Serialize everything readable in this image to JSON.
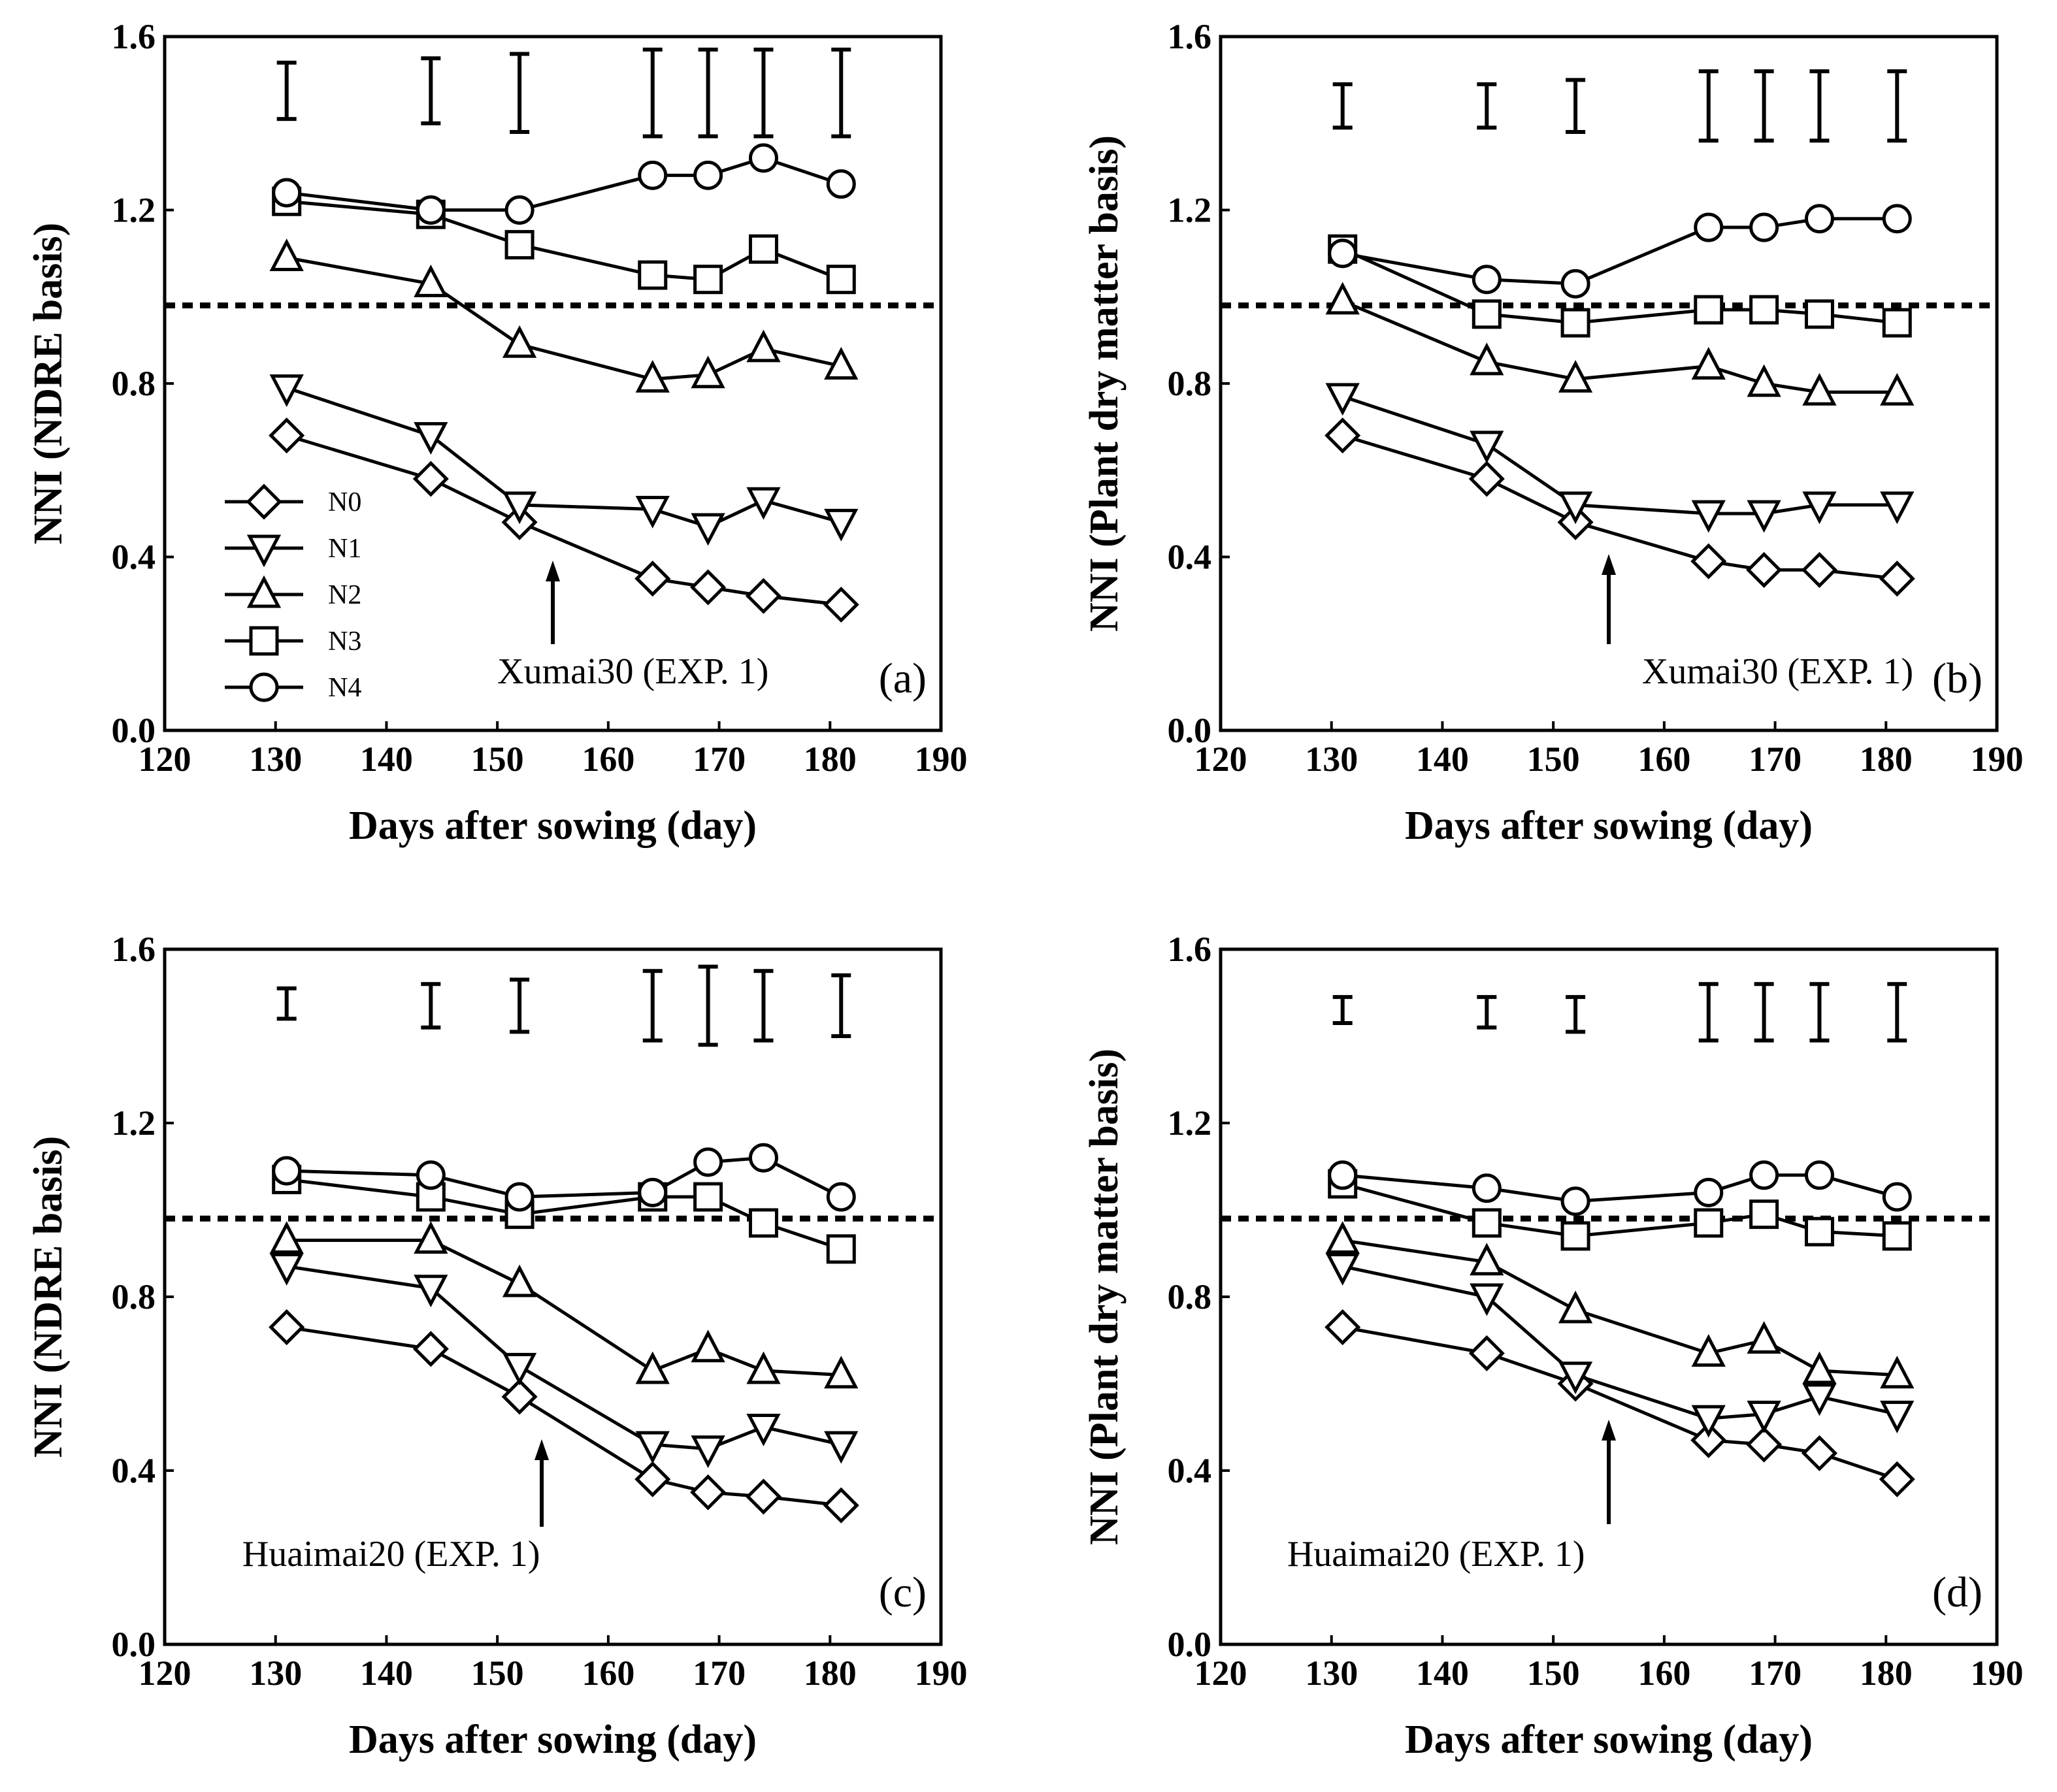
{
  "chart_data": [
    {
      "type": "line",
      "panel_label": "(a)",
      "annotation": "Xumai30 (EXP. 1)",
      "arrow_x": 155,
      "xlabel": "Days after sowing (day)",
      "ylabel": "NNI (NDRE basis)",
      "xlim": [
        120,
        190
      ],
      "ylim": [
        0.0,
        1.6
      ],
      "xticks": [
        "120",
        "130",
        "140",
        "150",
        "160",
        "170",
        "180",
        "190"
      ],
      "yticks": [
        "0.0",
        "0.4",
        "0.8",
        "1.2",
        "1.6"
      ],
      "reference_line": 0.98,
      "x": [
        131,
        144,
        152,
        164,
        169,
        174,
        181
      ],
      "series": [
        {
          "name": "N0",
          "marker": "diamond",
          "values": [
            0.68,
            0.58,
            0.48,
            0.35,
            0.33,
            0.31,
            0.29
          ]
        },
        {
          "name": "N1",
          "marker": "triangle-down",
          "values": [
            0.79,
            0.68,
            0.52,
            0.51,
            0.47,
            0.53,
            0.48
          ]
        },
        {
          "name": "N2",
          "marker": "triangle-up",
          "values": [
            1.09,
            1.03,
            0.89,
            0.81,
            0.82,
            0.88,
            0.84
          ]
        },
        {
          "name": "N3",
          "marker": "square",
          "values": [
            1.22,
            1.19,
            1.12,
            1.05,
            1.04,
            1.11,
            1.04
          ]
        },
        {
          "name": "N4",
          "marker": "circle",
          "values": [
            1.24,
            1.2,
            1.2,
            1.28,
            1.28,
            1.32,
            1.26
          ]
        }
      ],
      "error_bars": [
        [
          1.41,
          1.54
        ],
        [
          1.4,
          1.55
        ],
        [
          1.38,
          1.56
        ],
        [
          1.37,
          1.57
        ],
        [
          1.37,
          1.57
        ],
        [
          1.37,
          1.57
        ],
        [
          1.37,
          1.57
        ]
      ],
      "legend": {
        "position": "lower-left",
        "entries": [
          "N0",
          "N1",
          "N2",
          "N3",
          "N4"
        ]
      }
    },
    {
      "type": "line",
      "panel_label": "(b)",
      "annotation": "Xumai30 (EXP. 1)",
      "arrow_x": 155,
      "xlabel": "Days after sowing (day)",
      "ylabel": "NNI (Plant dry matter basis)",
      "xlim": [
        120,
        190
      ],
      "ylim": [
        0.0,
        1.6
      ],
      "xticks": [
        "120",
        "130",
        "140",
        "150",
        "160",
        "170",
        "180",
        "190"
      ],
      "yticks": [
        "0.0",
        "0.4",
        "0.8",
        "1.2",
        "1.6"
      ],
      "reference_line": 0.98,
      "x": [
        131,
        144,
        152,
        164,
        169,
        174,
        181
      ],
      "series": [
        {
          "name": "N0",
          "marker": "diamond",
          "values": [
            0.68,
            0.58,
            0.48,
            0.39,
            0.37,
            0.37,
            0.35
          ]
        },
        {
          "name": "N1",
          "marker": "triangle-down",
          "values": [
            0.77,
            0.66,
            0.52,
            0.5,
            0.5,
            0.52,
            0.52
          ]
        },
        {
          "name": "N2",
          "marker": "triangle-up",
          "values": [
            0.99,
            0.85,
            0.81,
            0.84,
            0.8,
            0.78,
            0.78
          ]
        },
        {
          "name": "N3",
          "marker": "square",
          "values": [
            1.11,
            0.96,
            0.94,
            0.97,
            0.97,
            0.96,
            0.94
          ]
        },
        {
          "name": "N4",
          "marker": "circle",
          "values": [
            1.1,
            1.04,
            1.03,
            1.16,
            1.16,
            1.18,
            1.18
          ]
        }
      ],
      "error_bars": [
        [
          1.39,
          1.49
        ],
        [
          1.39,
          1.49
        ],
        [
          1.38,
          1.5
        ],
        [
          1.36,
          1.52
        ],
        [
          1.36,
          1.52
        ],
        [
          1.36,
          1.52
        ],
        [
          1.36,
          1.52
        ]
      ]
    },
    {
      "type": "line",
      "panel_label": "(c)",
      "annotation": "Huaimai20 (EXP. 1)",
      "arrow_x": 154,
      "xlabel": "Days after sowing (day)",
      "ylabel": "NNI (NDRE basis)",
      "xlim": [
        120,
        190
      ],
      "ylim": [
        0.0,
        1.6
      ],
      "xticks": [
        "120",
        "130",
        "140",
        "150",
        "160",
        "170",
        "180",
        "190"
      ],
      "yticks": [
        "0.0",
        "0.4",
        "0.8",
        "1.2",
        "1.6"
      ],
      "reference_line": 0.98,
      "x": [
        131,
        144,
        152,
        164,
        169,
        174,
        181
      ],
      "series": [
        {
          "name": "N0",
          "marker": "diamond",
          "values": [
            0.73,
            0.68,
            0.57,
            0.38,
            0.35,
            0.34,
            0.32
          ]
        },
        {
          "name": "N1",
          "marker": "triangle-down",
          "values": [
            0.87,
            0.82,
            0.64,
            0.46,
            0.45,
            0.5,
            0.46
          ]
        },
        {
          "name": "N2",
          "marker": "triangle-up",
          "values": [
            0.93,
            0.93,
            0.83,
            0.63,
            0.68,
            0.63,
            0.62
          ]
        },
        {
          "name": "N3",
          "marker": "square",
          "values": [
            1.07,
            1.03,
            0.99,
            1.03,
            1.03,
            0.97,
            0.91
          ]
        },
        {
          "name": "N4",
          "marker": "circle",
          "values": [
            1.09,
            1.08,
            1.03,
            1.04,
            1.11,
            1.12,
            1.03
          ]
        }
      ],
      "error_bars": [
        [
          1.44,
          1.51
        ],
        [
          1.42,
          1.52
        ],
        [
          1.41,
          1.53
        ],
        [
          1.39,
          1.55
        ],
        [
          1.38,
          1.56
        ],
        [
          1.39,
          1.55
        ],
        [
          1.4,
          1.54
        ]
      ]
    },
    {
      "type": "line",
      "panel_label": "(d)",
      "annotation": "Huaimai20 (EXP. 1)",
      "arrow_x": 155,
      "xlabel": "Days after sowing (day)",
      "ylabel": "NNI (Plant dry matter basis)",
      "xlim": [
        120,
        190
      ],
      "ylim": [
        0.0,
        1.6
      ],
      "xticks": [
        "120",
        "130",
        "140",
        "150",
        "160",
        "170",
        "180",
        "190"
      ],
      "yticks": [
        "0.0",
        "0.4",
        "0.8",
        "1.2",
        "1.6"
      ],
      "reference_line": 0.98,
      "x": [
        131,
        144,
        152,
        164,
        169,
        174,
        181
      ],
      "series": [
        {
          "name": "N0",
          "marker": "diamond",
          "values": [
            0.73,
            0.67,
            0.6,
            0.47,
            0.46,
            0.44,
            0.38
          ]
        },
        {
          "name": "N1",
          "marker": "triangle-down",
          "values": [
            0.87,
            0.8,
            0.62,
            0.52,
            0.53,
            0.57,
            0.53
          ]
        },
        {
          "name": "N2",
          "marker": "triangle-up",
          "values": [
            0.93,
            0.88,
            0.77,
            0.67,
            0.7,
            0.63,
            0.62
          ]
        },
        {
          "name": "N3",
          "marker": "square",
          "values": [
            1.06,
            0.97,
            0.94,
            0.97,
            0.99,
            0.95,
            0.94
          ]
        },
        {
          "name": "N4",
          "marker": "circle",
          "values": [
            1.08,
            1.05,
            1.02,
            1.04,
            1.08,
            1.08,
            1.03
          ]
        }
      ],
      "error_bars": [
        [
          1.43,
          1.49
        ],
        [
          1.42,
          1.49
        ],
        [
          1.41,
          1.49
        ],
        [
          1.39,
          1.52
        ],
        [
          1.39,
          1.52
        ],
        [
          1.39,
          1.52
        ],
        [
          1.39,
          1.52
        ]
      ]
    }
  ]
}
